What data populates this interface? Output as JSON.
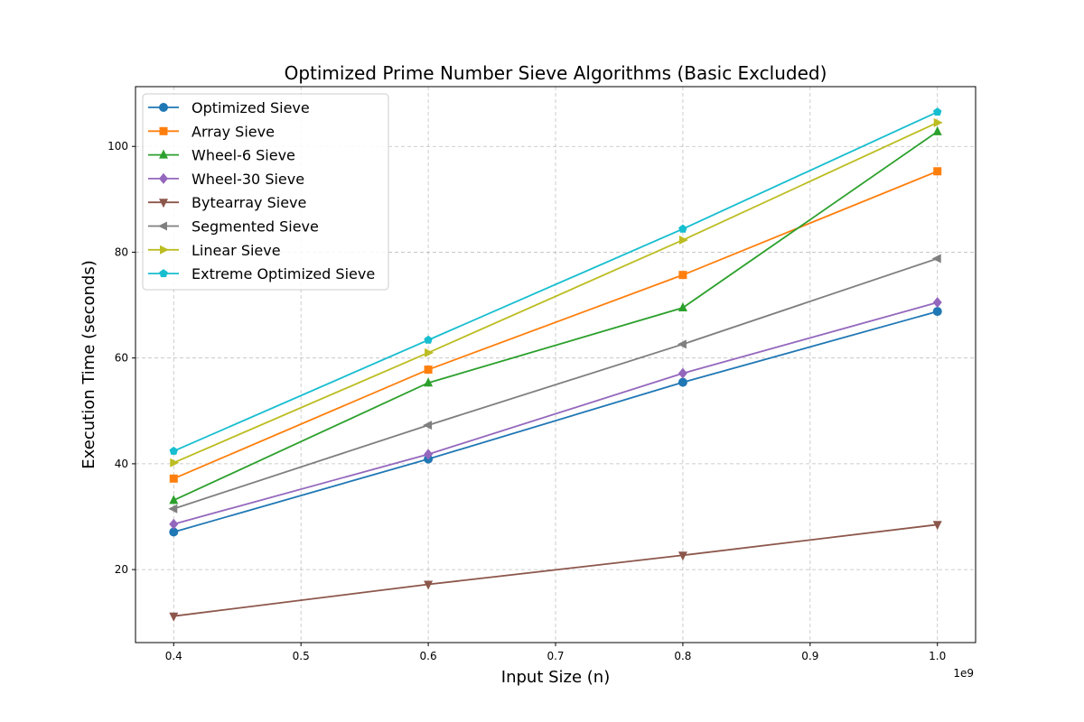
{
  "chart_data": {
    "type": "line",
    "title": "Optimized Prime Number Sieve Algorithms (Basic Excluded)",
    "xlabel": "Input Size (n)",
    "ylabel": "Execution Time (seconds)",
    "x_offset_label": "1e9",
    "x": [
      0.4,
      0.6,
      0.8,
      1.0
    ],
    "xlim": [
      0.37,
      1.03
    ],
    "ylim": [
      6.2,
      111.3
    ],
    "xticks": [
      0.4,
      0.5,
      0.6,
      0.7,
      0.8,
      0.9,
      1.0
    ],
    "xtick_labels": [
      "0.4",
      "0.5",
      "0.6",
      "0.7",
      "0.8",
      "0.9",
      "1.0"
    ],
    "yticks": [
      20,
      40,
      60,
      80,
      100
    ],
    "ytick_labels": [
      "20",
      "40",
      "60",
      "80",
      "100"
    ],
    "grid": true,
    "legend_position": "top-left",
    "series": [
      {
        "name": "Optimized Sieve",
        "color": "#1f77b4",
        "marker": "circle",
        "values": [
          27.1,
          40.9,
          55.4,
          68.8
        ]
      },
      {
        "name": "Array Sieve",
        "color": "#ff7f0e",
        "marker": "square",
        "values": [
          37.2,
          57.8,
          75.7,
          95.3
        ]
      },
      {
        "name": "Wheel-6 Sieve",
        "color": "#2ca02c",
        "marker": "triangle-up",
        "values": [
          33.1,
          55.3,
          69.5,
          102.8
        ]
      },
      {
        "name": "Wheel-30 Sieve",
        "color": "#9467bd",
        "marker": "diamond",
        "values": [
          28.6,
          41.8,
          57.1,
          70.5
        ]
      },
      {
        "name": "Bytearray Sieve",
        "color": "#8c564b",
        "marker": "triangle-down",
        "values": [
          11.2,
          17.2,
          22.7,
          28.5
        ]
      },
      {
        "name": "Segmented Sieve",
        "color": "#7f7f7f",
        "marker": "triangle-left",
        "values": [
          31.5,
          47.3,
          62.6,
          78.8
        ]
      },
      {
        "name": "Linear Sieve",
        "color": "#bcbd22",
        "marker": "triangle-right",
        "values": [
          40.2,
          61.0,
          82.3,
          104.5
        ]
      },
      {
        "name": "Extreme Optimized Sieve",
        "color": "#17becf",
        "marker": "pentagon",
        "values": [
          42.4,
          63.4,
          84.4,
          106.5
        ]
      }
    ]
  }
}
